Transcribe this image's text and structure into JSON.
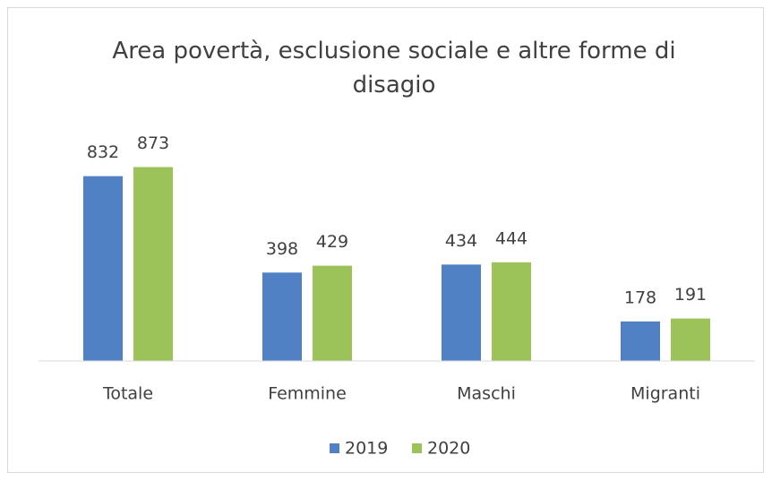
{
  "chart_data": {
    "type": "bar",
    "title": "Area povertà, esclusione sociale e altre forme di disagio",
    "categories": [
      "Totale",
      "Femmine",
      "Maschi",
      "Migranti"
    ],
    "series": [
      {
        "name": "2019",
        "color": "#4f81c4",
        "values": [
          832,
          398,
          434,
          178
        ]
      },
      {
        "name": "2020",
        "color": "#9bc35a",
        "values": [
          873,
          429,
          444,
          191
        ]
      }
    ],
    "ylim": [
      0,
      1000
    ],
    "legend": "bottom"
  }
}
